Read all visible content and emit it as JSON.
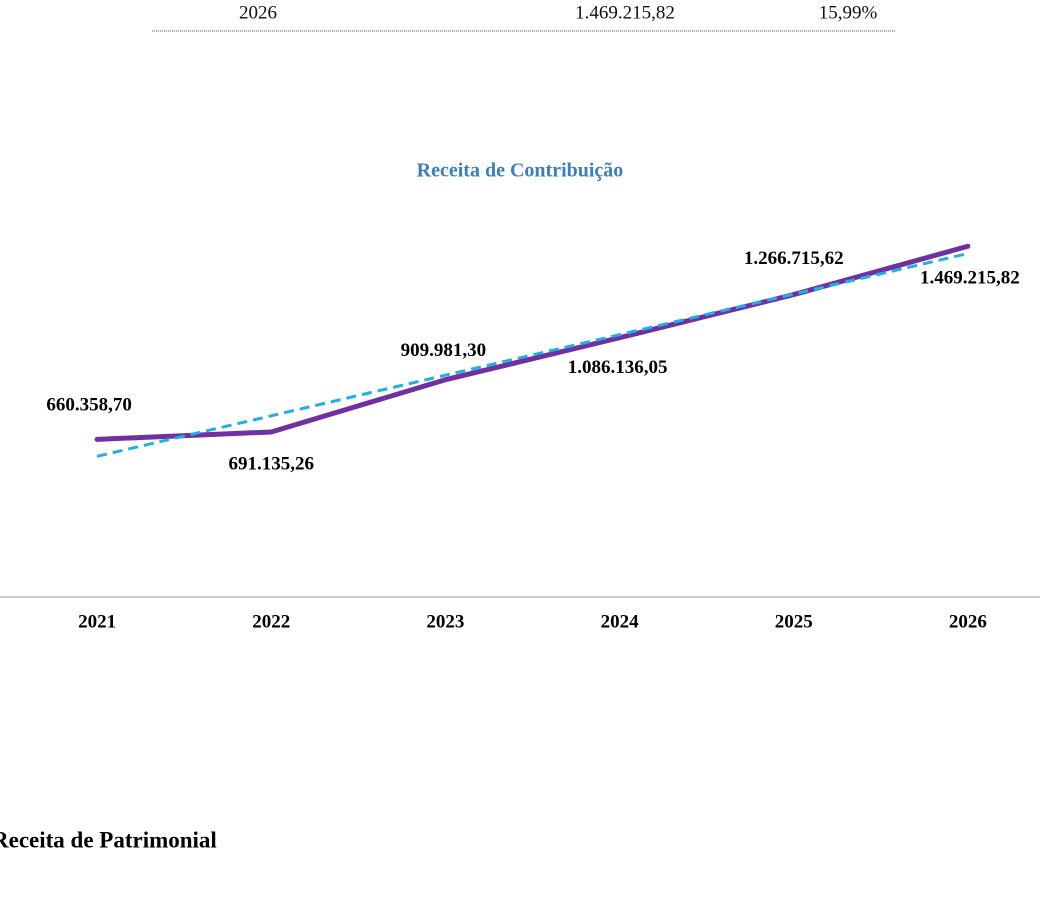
{
  "table_row": {
    "cells": [
      "2026",
      "1.469.215,82",
      "15,99%"
    ]
  },
  "chart_data": {
    "type": "line",
    "title": "Receita de Contribuição",
    "categories": [
      "2021",
      "2022",
      "2023",
      "2024",
      "2025",
      "2026"
    ],
    "values": [
      660358.7,
      691135.26,
      909981.3,
      1086136.05,
      1266715.62,
      1469215.82
    ],
    "value_labels": [
      "660.358,70",
      "691.135,26",
      "909.981,30",
      "1.086.136,05",
      "1.266.715,62",
      "1.469.215,82"
    ],
    "color": "#7030a0",
    "ylim": [
      0,
      1600000
    ],
    "trendline": true,
    "trendline_color": "#1fb0e6"
  },
  "section_heading": "Receita de Patrimonial"
}
